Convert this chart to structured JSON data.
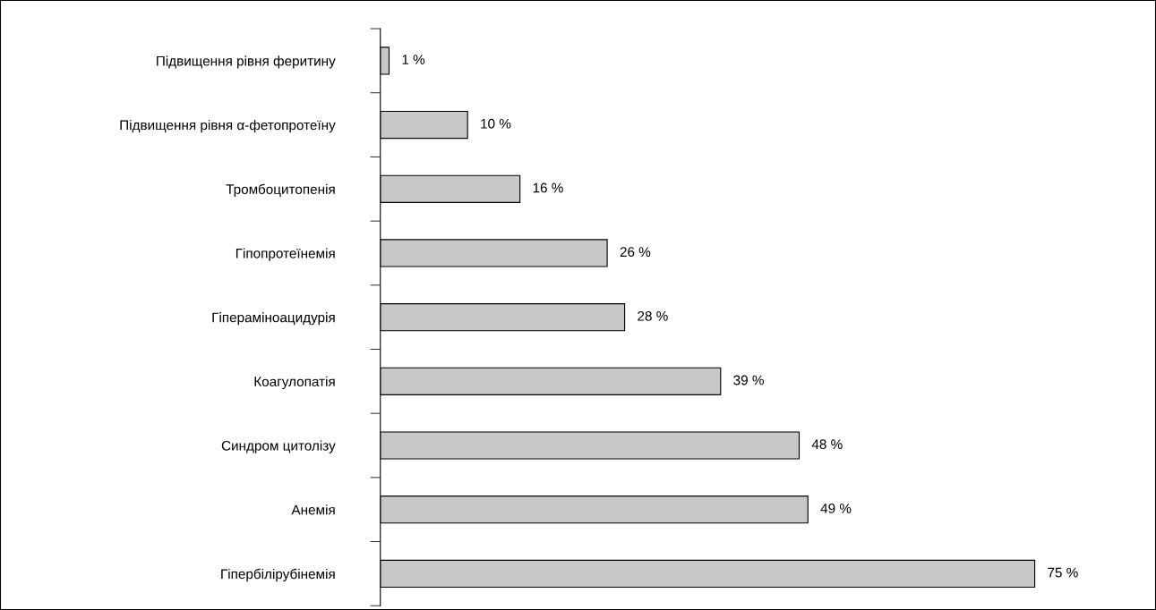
{
  "chart_data": {
    "type": "bar",
    "orientation": "horizontal",
    "categories": [
      "Підвищення рівня феритину",
      "Підвищення рівня α-фетопротеїну",
      "Тромбоцитопенія",
      "Гіпопротеїнемія",
      "Гіпераміноацидурія",
      "Коагулопатія",
      "Синдром цитолізу",
      "Анемія",
      "Гіпербілірубінемія"
    ],
    "values": [
      1,
      10,
      16,
      26,
      28,
      39,
      48,
      49,
      75
    ],
    "value_labels": [
      "1 %",
      "10 %",
      "16 %",
      "26 %",
      "28 %",
      "39 %",
      "48 %",
      "49 %",
      "75 %"
    ],
    "color": "#c8c8c8",
    "grid": false,
    "tick_labels": "y"
  }
}
